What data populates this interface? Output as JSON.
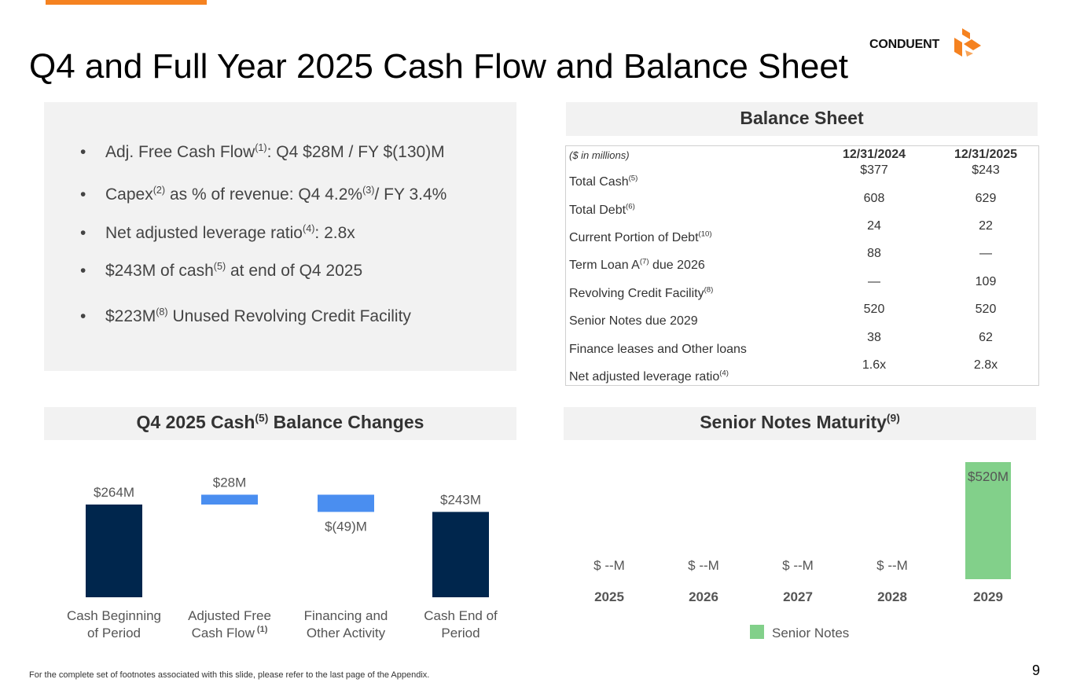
{
  "page": {
    "title": "Q4 and Full Year 2025 Cash Flow and Balance Sheet",
    "logo_text": "CONDUENT",
    "footnote": "For the complete set of footnotes associated with this slide, please refer to the last page of the Appendix.",
    "page_number": "9",
    "accent_color": "#f58220"
  },
  "bullets": [
    {
      "before": "Adj. Free Cash Flow",
      "sup": "(1)",
      "after": ": Q4 $28M / FY $(130)M"
    },
    {
      "before": "Capex",
      "sup": "(2)",
      "mid": " as % of revenue: Q4 4.2%",
      "sup2": "(3)",
      "after": "/ FY 3.4%"
    },
    {
      "before": "Net adjusted leverage ratio",
      "sup": "(4)",
      "after": ": 2.8x"
    },
    {
      "before": "$243M of cash",
      "sup": "(5)",
      "after": " at end of Q4 2025"
    },
    {
      "before": "$223M",
      "sup": "(8)",
      "after": " Unused Revolving Credit Facility"
    }
  ],
  "balance_sheet": {
    "header": "Balance Sheet",
    "units_label": "($ in millions)",
    "columns": [
      "12/31/2024",
      "12/31/2025"
    ],
    "rows": [
      {
        "label": "Total Cash",
        "sup": "(5)",
        "after": "",
        "v1": "$377",
        "v2": "$243"
      },
      {
        "label": "Total Debt",
        "sup": "(6)",
        "after": "",
        "v1": "608",
        "v2": "629"
      },
      {
        "label": "Current Portion of Debt",
        "sup": "(10)",
        "after": "",
        "v1": "24",
        "v2": "22"
      },
      {
        "label": "Term Loan A",
        "sup": "(7)",
        "after": " due 2026",
        "v1": "88",
        "v2": "—"
      },
      {
        "label": "Revolving Credit Facility",
        "sup": "(8)",
        "after": "",
        "v1": "—",
        "v2": "109"
      },
      {
        "label": "Senior Notes due 2029",
        "sup": "",
        "after": "",
        "v1": "520",
        "v2": "520"
      },
      {
        "label": "Finance leases and Other loans",
        "sup": "",
        "after": "",
        "v1": "38",
        "v2": "62"
      },
      {
        "label": "Net adjusted leverage ratio",
        "sup": "(4)",
        "after": "",
        "v1": "1.6x",
        "v2": "2.8x"
      }
    ]
  },
  "cash_header": {
    "before": "Q4 2025 Cash",
    "sup": "(5)",
    "after": " Balance Changes"
  },
  "notes_header": {
    "before": "Senior Notes Maturity",
    "sup": "(9)"
  },
  "chart_data": [
    {
      "type": "bar",
      "subtype": "waterfall",
      "categories": [
        "Cash Beginning of  Period",
        "Adjusted Free Cash Flow (1)",
        "Financing and Other Activity",
        "Cash End of Period"
      ],
      "category_lines": [
        [
          "Cash Beginning",
          "of  Period"
        ],
        [
          "Adjusted Free",
          "Cash Flow"
        ],
        [
          "Financing and",
          "Other Activity"
        ],
        [
          "Cash End of",
          "Period"
        ]
      ],
      "category_sup": [
        "",
        "(1)",
        "",
        ""
      ],
      "values": [
        264,
        28,
        -49,
        243
      ],
      "kinds": [
        "total",
        "delta",
        "delta",
        "total"
      ],
      "data_labels": [
        "$264M",
        "$28M",
        "$(49)M",
        "$243M"
      ],
      "colors": {
        "total": "#00264d",
        "delta": "#4a8ef0"
      }
    },
    {
      "type": "bar",
      "categories": [
        "2025",
        "2026",
        "2027",
        "2028",
        "2029"
      ],
      "series": [
        {
          "name": "Senior Notes",
          "values": [
            0,
            0,
            0,
            0,
            520
          ]
        }
      ],
      "data_labels": [
        "$ --M",
        "$ --M",
        "$ --M",
        "$ --M",
        "$520M"
      ],
      "legend": "bottom",
      "color": "#82d08a"
    }
  ]
}
